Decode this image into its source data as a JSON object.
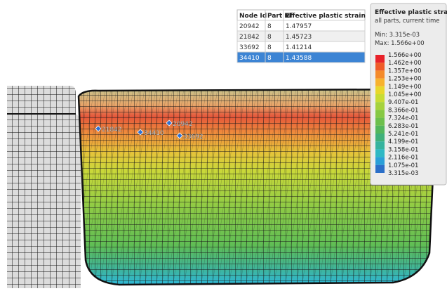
{
  "table": {
    "header": [
      "Node Id",
      "Part Id",
      "Effective plastic strain"
    ],
    "rows": [
      [
        "20942",
        "8",
        "1.47957"
      ],
      [
        "21842",
        "8",
        "1.45723"
      ],
      [
        "33692",
        "8",
        "1.41214"
      ],
      [
        "34410",
        "8",
        "1.43588"
      ]
    ]
  },
  "legend": {
    "title": "Effective plastic strain",
    "subtitle": "all parts, current time",
    "min": "Min: 3.315e-03",
    "max": "Max: 1.566e+00",
    "labels": [
      "1.566e+00",
      "1.462e+00",
      "1.357e+00",
      "1.253e+00",
      "1.149e+00",
      "1.045e+00",
      "9.407e-01",
      "8.366e-01",
      "7.324e-01",
      "6.283e-01",
      "5.241e-01",
      "4.199e-01",
      "3.158e-01",
      "2.116e-01",
      "1.075e-01",
      "3.315e-03"
    ],
    "colors": [
      "#e8222a",
      "#ef5a28",
      "#f48a2a",
      "#f7b22e",
      "#e8d72c",
      "#c8dc34",
      "#a6d23c",
      "#86c843",
      "#6cbf4c",
      "#52b65c",
      "#3fb07a",
      "#35b39e",
      "#2eb8c4",
      "#2a9fd8",
      "#2b6fc8"
    ]
  },
  "nodes": [
    "21842",
    "34410",
    "20942",
    "33692"
  ]
}
